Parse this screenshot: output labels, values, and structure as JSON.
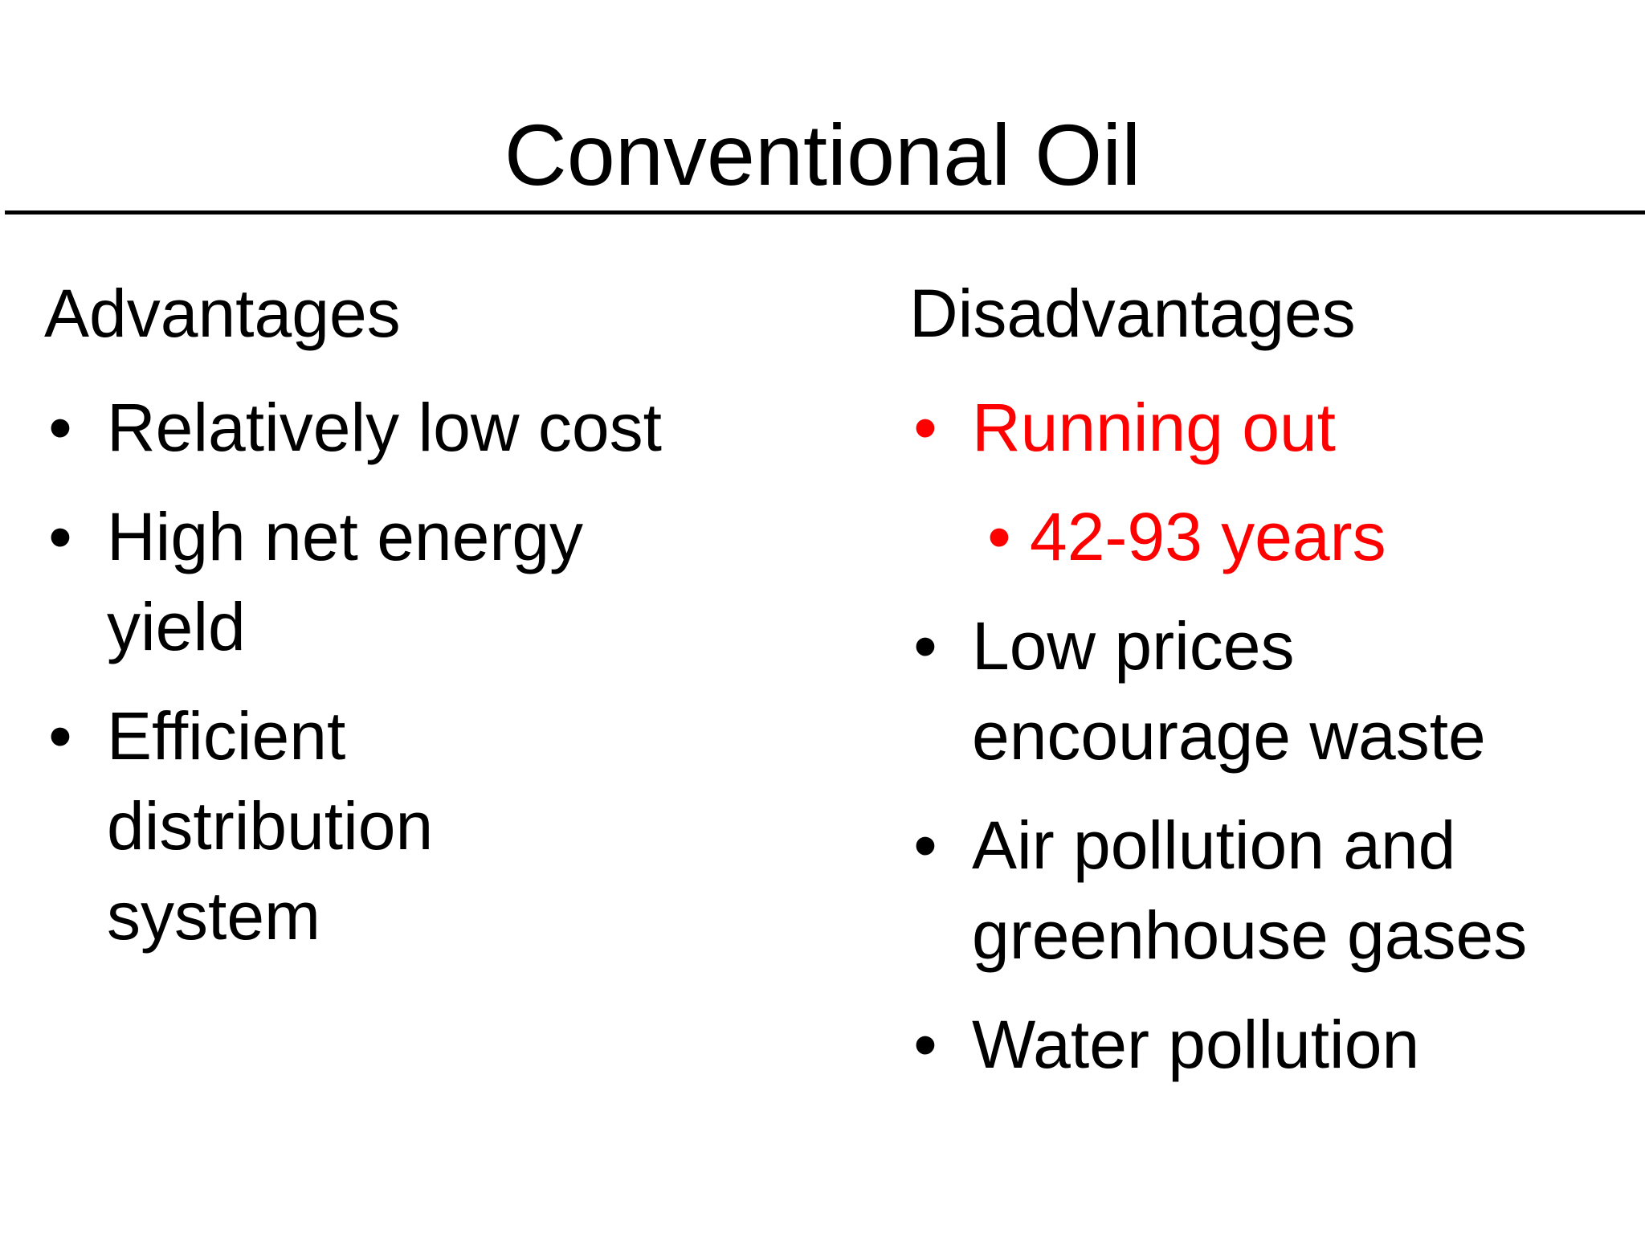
{
  "title": "Conventional Oil",
  "advantages": {
    "heading": "Advantages",
    "items": [
      {
        "text": "Relatively low cost"
      },
      {
        "text": "High net energy yield"
      },
      {
        "text": "Efficient distribution system"
      }
    ]
  },
  "disadvantages": {
    "heading": "Disadvantages",
    "items": [
      {
        "text": "Running out",
        "color": "#ff0000"
      },
      {
        "text": "42-93 years",
        "color": "#ff0000",
        "level": 2
      },
      {
        "text": "Low prices encourage waste"
      },
      {
        "text": "Air pollution and greenhouse gases"
      },
      {
        "text": "Water pollution"
      }
    ]
  },
  "bullet_glyph": "•",
  "colors": {
    "text": "#000000",
    "highlight": "#ff0000",
    "background": "#ffffff"
  }
}
